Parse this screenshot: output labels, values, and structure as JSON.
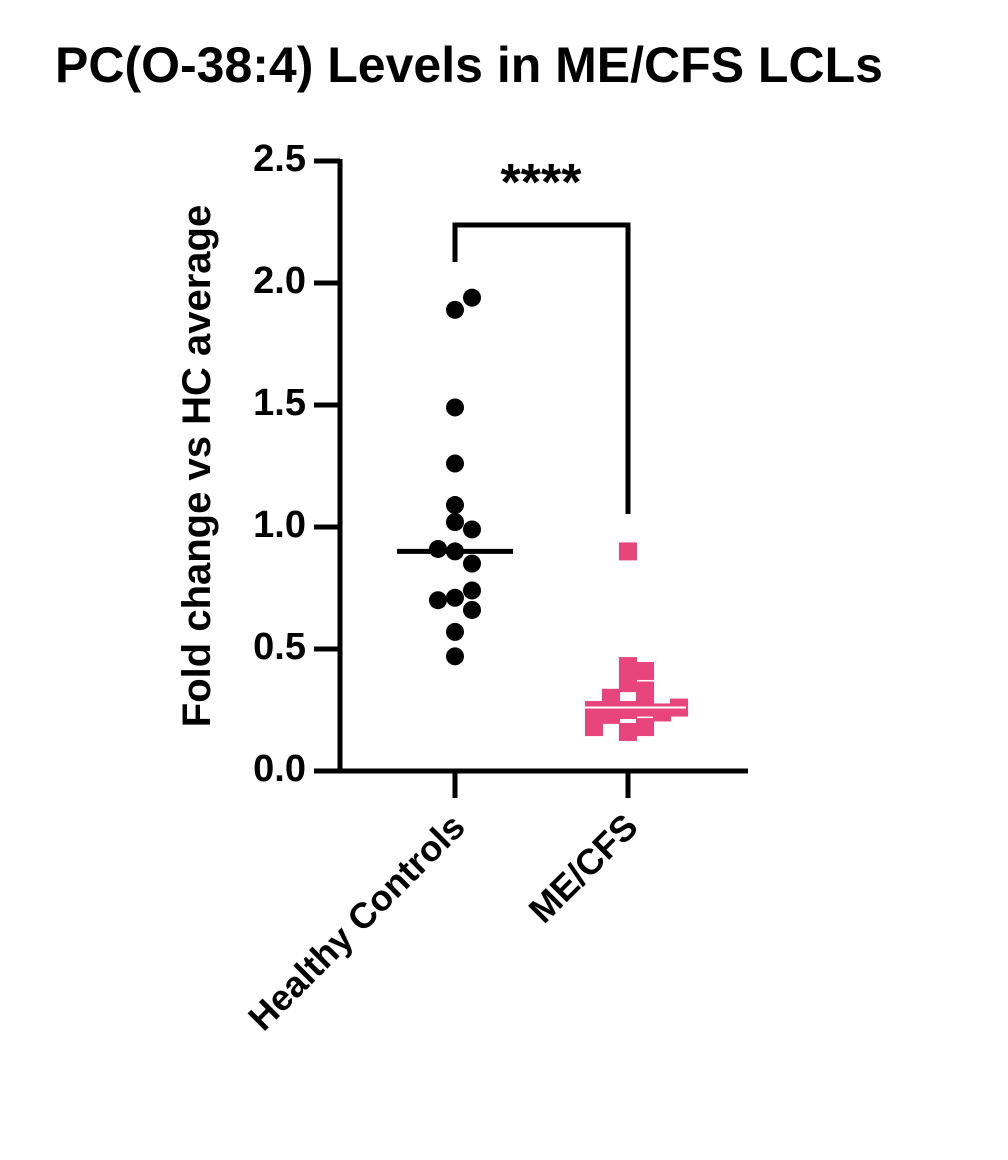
{
  "chart_data": {
    "type": "dot",
    "title": "PC(O-38:4) Levels in ME/CFS LCLs",
    "y_label": "Fold change vs HC average",
    "categories": [
      "Healthy Controls",
      "ME/CFS"
    ],
    "values": [
      [
        1.89,
        1.94,
        1.49,
        1.26,
        1.09,
        1.02,
        0.99,
        0.9,
        0.85,
        0.91,
        0.71,
        0.66,
        0.7,
        0.74,
        0.57,
        0.47
      ],
      [
        0.9,
        0.43,
        0.41,
        0.36,
        0.33,
        0.3,
        0.25,
        0.26,
        0.24,
        0.25,
        0.26,
        0.23,
        0.16,
        0.18,
        0.18
      ]
    ],
    "medians": [
      0.9,
      0.26
    ],
    "colors": [
      "#000000",
      "#e8457c"
    ],
    "markers": [
      "circle",
      "square"
    ],
    "annotation": "****",
    "ylim": [
      0,
      2.5
    ],
    "yticks": [
      {
        "value": 0,
        "label": "0.0"
      },
      {
        "value": 0.5,
        "label": "0.5"
      },
      {
        "value": 1,
        "label": "1.0"
      },
      {
        "value": 1.5,
        "label": "1.5"
      },
      {
        "value": 2,
        "label": "2.0"
      },
      {
        "value": 2.5,
        "label": "2.5"
      }
    ]
  }
}
